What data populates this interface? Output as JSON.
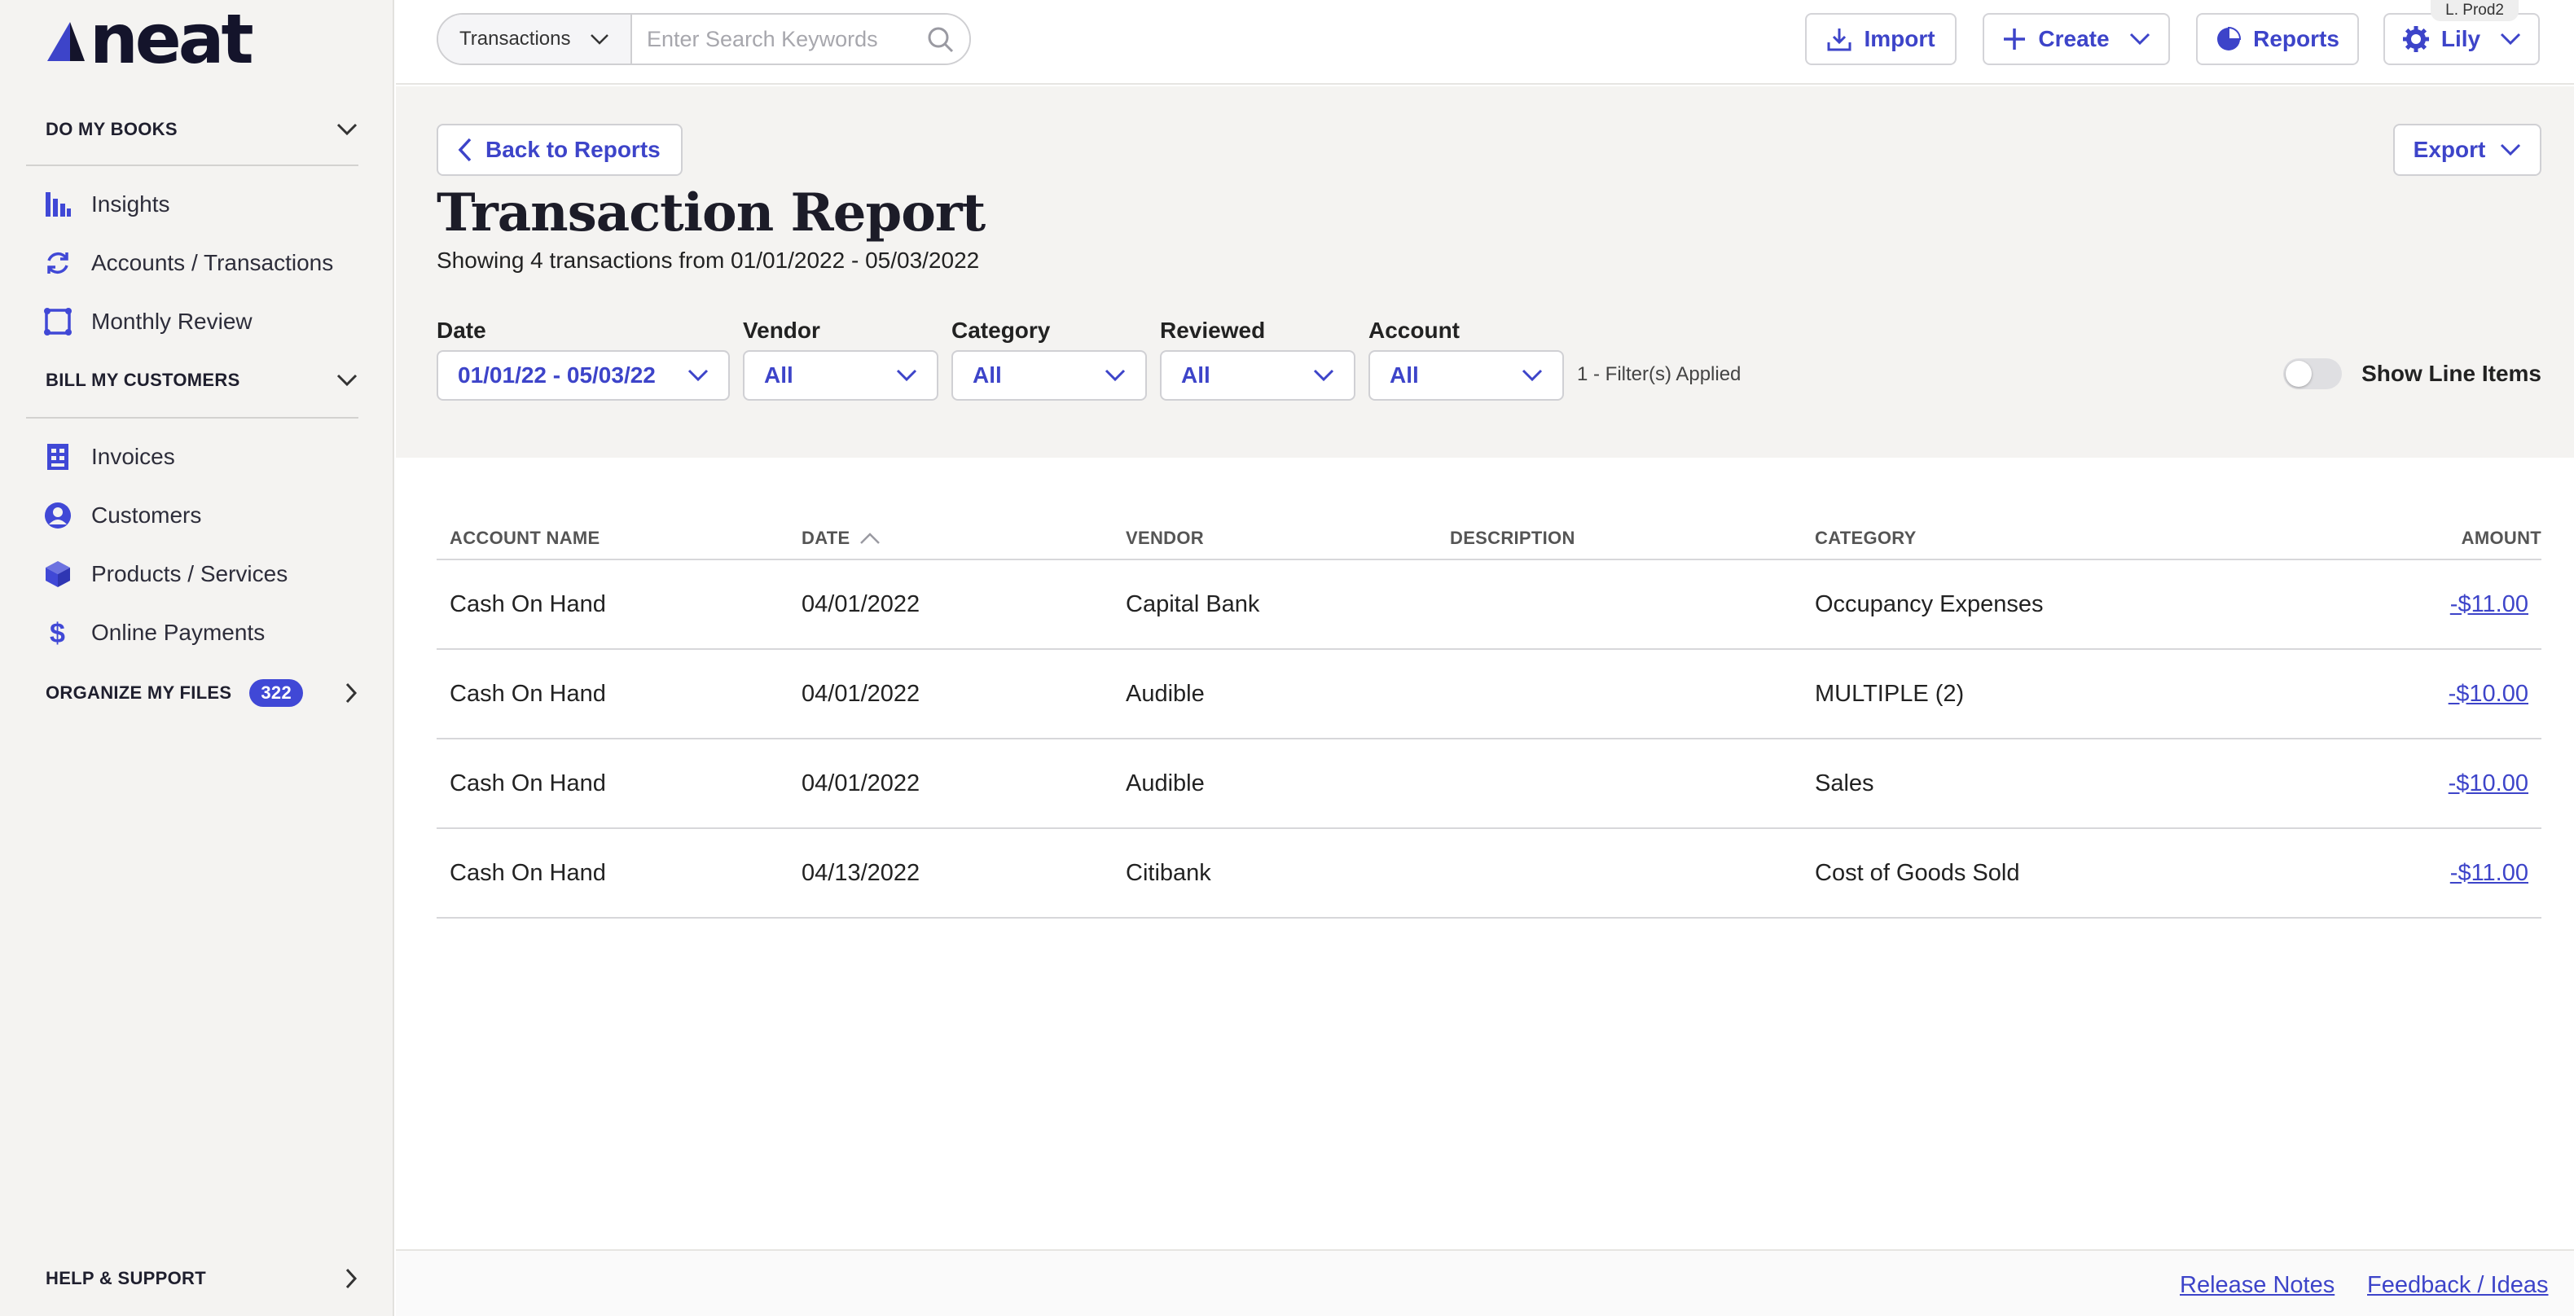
{
  "sidebar": {
    "logo_text": "neat",
    "sections": {
      "books": {
        "label": "DO MY BOOKS"
      },
      "customers": {
        "label": "BILL MY CUSTOMERS"
      },
      "files": {
        "label": "ORGANIZE MY FILES",
        "badge": "322"
      },
      "help": {
        "label": "HELP & SUPPORT"
      }
    },
    "books_items": [
      "Insights",
      "Accounts / Transactions",
      "Monthly Review"
    ],
    "customer_items": [
      "Invoices",
      "Customers",
      "Products / Services",
      "Online Payments"
    ]
  },
  "topbar": {
    "search_type": "Transactions",
    "search_placeholder": "Enter Search Keywords",
    "import_label": "Import",
    "create_label": "Create",
    "reports_label": "Reports",
    "user_label": "Lily",
    "user_tag": "L. Prod2"
  },
  "report": {
    "back_label": "Back to Reports",
    "export_label": "Export",
    "title": "Transaction Report",
    "subtitle": "Showing 4 transactions from 01/01/2022 - 05/03/2022",
    "filters": {
      "date": {
        "label": "Date",
        "value": "01/01/22 - 05/03/22"
      },
      "vendor": {
        "label": "Vendor",
        "value": "All"
      },
      "category": {
        "label": "Category",
        "value": "All"
      },
      "reviewed": {
        "label": "Reviewed",
        "value": "All"
      },
      "account": {
        "label": "Account",
        "value": "All"
      }
    },
    "filters_applied": "1 - Filter(s) Applied",
    "show_line_items_label": "Show Line Items",
    "show_line_items_on": false
  },
  "table": {
    "headers": {
      "account": "ACCOUNT NAME",
      "date": "DATE",
      "vendor": "VENDOR",
      "description": "DESCRIPTION",
      "category": "CATEGORY",
      "amount": "AMOUNT"
    },
    "rows": [
      {
        "account": "Cash On Hand",
        "date": "04/01/2022",
        "vendor": "Capital Bank",
        "description": "",
        "category": "Occupancy Expenses",
        "amount": "-$11.00"
      },
      {
        "account": "Cash On Hand",
        "date": "04/01/2022",
        "vendor": "Audible",
        "description": "",
        "category": "MULTIPLE (2)",
        "amount": "-$10.00"
      },
      {
        "account": "Cash On Hand",
        "date": "04/01/2022",
        "vendor": "Audible",
        "description": "",
        "category": "Sales",
        "amount": "-$10.00"
      },
      {
        "account": "Cash On Hand",
        "date": "04/13/2022",
        "vendor": "Citibank",
        "description": "",
        "category": "Cost of Goods Sold",
        "amount": "-$11.00"
      }
    ]
  },
  "footer": {
    "release_notes": "Release Notes",
    "feedback": "Feedback / Ideas"
  },
  "colors": {
    "accent": "#3d44c9",
    "sidebar_bg": "#f4f3f1",
    "badge": "#4048d6"
  }
}
